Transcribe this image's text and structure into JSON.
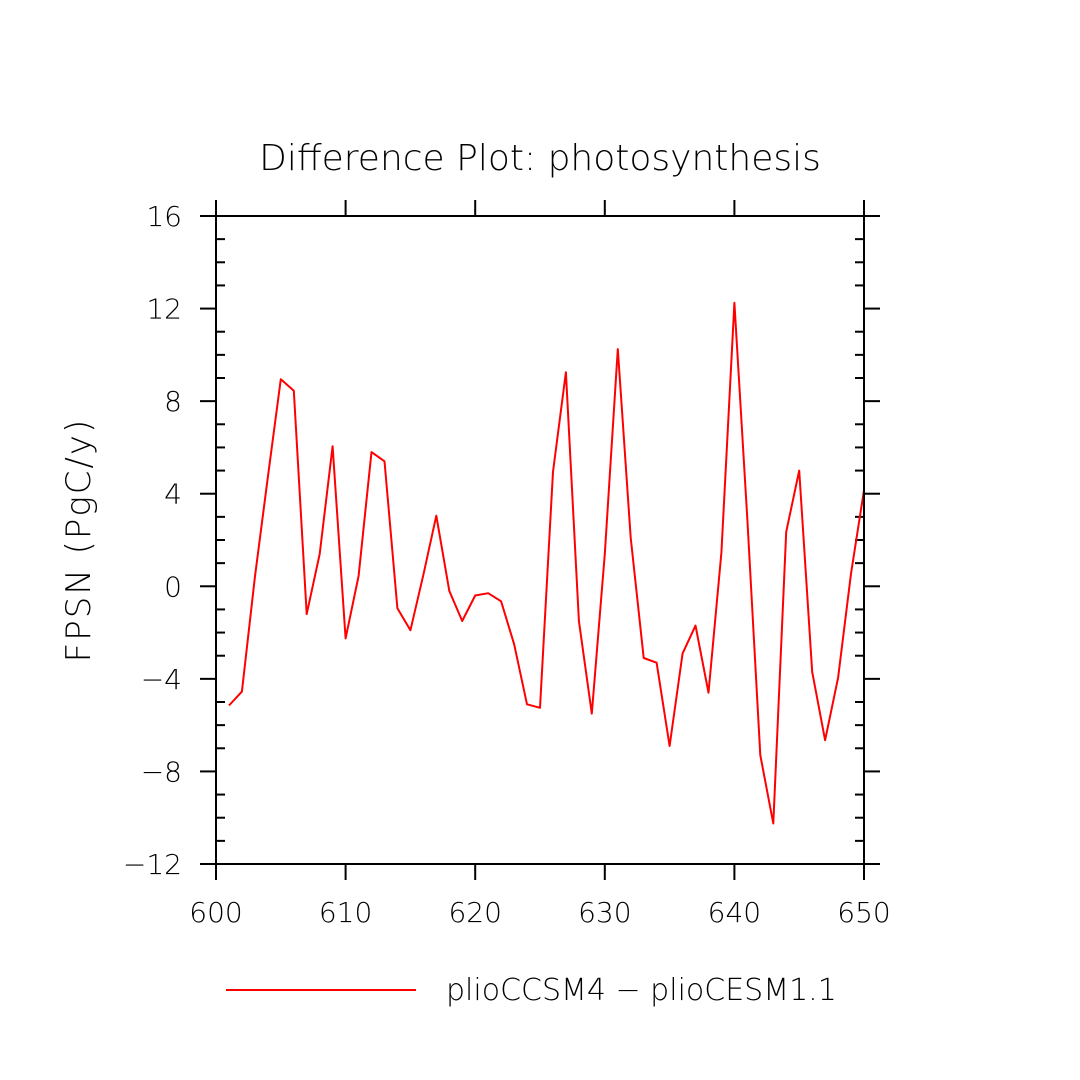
{
  "chart_data": {
    "type": "line",
    "title": "Difference Plot: photosynthesis",
    "xlabel": "",
    "ylabel": "FPSN  (PgC/y)",
    "xlim": [
      600,
      650
    ],
    "ylim": [
      -12,
      16
    ],
    "x_ticks": [
      "600",
      "610",
      "620",
      "630",
      "640",
      "650"
    ],
    "y_ticks": [
      "−12",
      "−8",
      "−4",
      "0",
      "4",
      "8",
      "12",
      "16"
    ],
    "grid": false,
    "legend_position": "bottom",
    "series": [
      {
        "name": "plioCCSM4 − plioCESM1.1",
        "color": "#ff0000",
        "x": [
          601,
          602,
          603,
          604,
          605,
          606,
          607,
          608,
          609,
          610,
          611,
          612,
          613,
          614,
          615,
          616,
          617,
          618,
          619,
          620,
          621,
          622,
          623,
          624,
          625,
          626,
          627,
          628,
          629,
          630,
          631,
          632,
          633,
          634,
          635,
          636,
          637,
          638,
          639,
          640,
          641,
          642,
          643,
          644,
          645,
          646,
          647,
          648,
          649,
          650
        ],
        "values": [
          -5.15,
          -4.55,
          0.4,
          4.7,
          8.95,
          8.45,
          -1.2,
          1.4,
          6.05,
          -2.25,
          0.45,
          5.8,
          5.4,
          -0.95,
          -1.9,
          0.5,
          3.05,
          -0.2,
          -1.5,
          -0.4,
          -0.3,
          -0.65,
          -2.5,
          -5.1,
          -5.25,
          4.95,
          9.25,
          -1.5,
          -5.5,
          1.4,
          10.25,
          2.1,
          -3.1,
          -3.3,
          -6.9,
          -2.9,
          -1.7,
          -4.6,
          1.45,
          12.25,
          2.85,
          -7.3,
          -10.25,
          2.35,
          5.0,
          -3.7,
          -6.65,
          -3.95,
          0.55,
          4.15
        ]
      }
    ]
  }
}
